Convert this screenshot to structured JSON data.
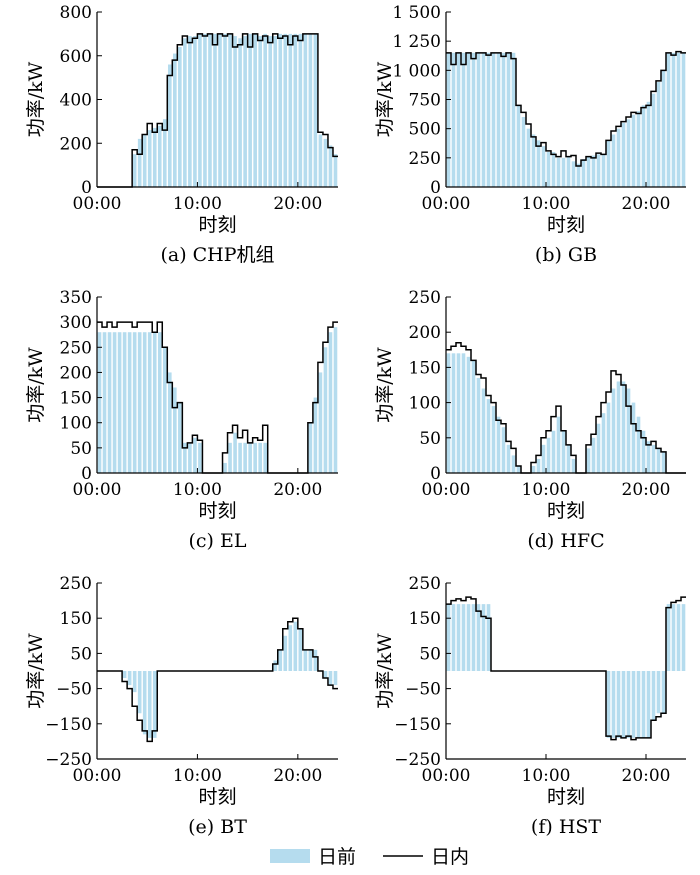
{
  "legend": {
    "day_ahead": "日前",
    "intraday": "日内"
  },
  "colors": {
    "bar": "#b5dcee",
    "line": "#000000"
  },
  "chart_data": [
    {
      "type": "bar",
      "id": "chp",
      "caption": "(a)  CHP机组",
      "xlabel": "时刻",
      "ylabel": "功率/kW",
      "xticks": [
        "00:00",
        "10:00",
        "20:00"
      ],
      "xtick_hours": [
        0,
        10,
        20
      ],
      "ylim": [
        0,
        800
      ],
      "yticks": [
        0,
        200,
        400,
        600,
        800
      ],
      "ytick_labels": [
        "0",
        "200",
        "400",
        "600",
        "800"
      ],
      "x_hours": [
        0,
        0.5,
        1,
        1.5,
        2,
        2.5,
        3,
        3.5,
        4,
        4.5,
        5,
        5.5,
        6,
        6.5,
        7,
        7.5,
        8,
        8.5,
        9,
        9.5,
        10,
        10.5,
        11,
        11.5,
        12,
        12.5,
        13,
        13.5,
        14,
        14.5,
        15,
        15.5,
        16,
        16.5,
        17,
        17.5,
        18,
        18.5,
        19,
        19.5,
        20,
        20.5,
        21,
        21.5,
        22,
        22.5,
        23,
        23.5
      ],
      "day_ahead": [
        0,
        0,
        0,
        0,
        0,
        0,
        0,
        150,
        220,
        240,
        260,
        270,
        280,
        310,
        560,
        610,
        640,
        680,
        690,
        690,
        700,
        700,
        700,
        700,
        700,
        700,
        700,
        690,
        680,
        690,
        700,
        700,
        690,
        700,
        690,
        690,
        700,
        700,
        700,
        700,
        700,
        700,
        700,
        700,
        240,
        220,
        190,
        150
      ],
      "intraday": [
        0,
        0,
        0,
        0,
        0,
        0,
        0,
        170,
        150,
        240,
        290,
        250,
        290,
        260,
        510,
        580,
        650,
        690,
        660,
        680,
        700,
        690,
        700,
        650,
        700,
        690,
        700,
        640,
        650,
        700,
        640,
        700,
        670,
        690,
        660,
        700,
        680,
        690,
        650,
        690,
        670,
        700,
        700,
        700,
        250,
        240,
        180,
        140
      ]
    },
    {
      "type": "bar",
      "id": "gb",
      "caption": "(b)  GB",
      "xlabel": "时刻",
      "ylabel": "功率/kW",
      "xticks": [
        "00:00",
        "10:00",
        "20:00"
      ],
      "xtick_hours": [
        0,
        10,
        20
      ],
      "ylim": [
        0,
        1500
      ],
      "yticks": [
        0,
        250,
        500,
        750,
        1000,
        1250,
        1500
      ],
      "ytick_labels": [
        "0",
        "250",
        "500",
        "750",
        "1 000",
        "1 250",
        "1 500"
      ],
      "x_hours": [
        0,
        0.5,
        1,
        1.5,
        2,
        2.5,
        3,
        3.5,
        4,
        4.5,
        5,
        5.5,
        6,
        6.5,
        7,
        7.5,
        8,
        8.5,
        9,
        9.5,
        10,
        10.5,
        11,
        11.5,
        12,
        12.5,
        13,
        13.5,
        14,
        14.5,
        15,
        15.5,
        16,
        16.5,
        17,
        17.5,
        18,
        18.5,
        19,
        19.5,
        20,
        20.5,
        21,
        21.5,
        22,
        22.5,
        23,
        23.5
      ],
      "day_ahead": [
        1150,
        1150,
        1150,
        1150,
        1150,
        1150,
        1150,
        1150,
        1150,
        1150,
        1150,
        1150,
        1150,
        1150,
        700,
        600,
        500,
        450,
        400,
        350,
        300,
        300,
        250,
        250,
        260,
        220,
        200,
        240,
        260,
        270,
        280,
        280,
        400,
        450,
        500,
        550,
        580,
        620,
        650,
        700,
        730,
        800,
        900,
        1000,
        1150,
        1150,
        1150,
        1150
      ],
      "intraday": [
        1150,
        1050,
        1150,
        1050,
        1150,
        1100,
        1150,
        1150,
        1130,
        1150,
        1150,
        1120,
        1150,
        1100,
        700,
        640,
        540,
        430,
        350,
        380,
        310,
        280,
        260,
        310,
        260,
        270,
        180,
        230,
        260,
        250,
        290,
        280,
        400,
        480,
        520,
        560,
        600,
        640,
        630,
        680,
        700,
        820,
        910,
        1000,
        1150,
        1130,
        1160,
        1150
      ]
    },
    {
      "type": "bar",
      "id": "el",
      "caption": "(c)  EL",
      "xlabel": "时刻",
      "ylabel": "功率/kW",
      "xticks": [
        "00:00",
        "10:00",
        "20:00"
      ],
      "xtick_hours": [
        0,
        10,
        20
      ],
      "ylim": [
        0,
        350
      ],
      "yticks": [
        0,
        50,
        100,
        150,
        200,
        250,
        300,
        350
      ],
      "ytick_labels": [
        "0",
        "50",
        "100",
        "150",
        "200",
        "250",
        "300",
        "350"
      ],
      "x_hours": [
        0,
        0.5,
        1,
        1.5,
        2,
        2.5,
        3,
        3.5,
        4,
        4.5,
        5,
        5.5,
        6,
        6.5,
        7,
        7.5,
        8,
        8.5,
        9,
        9.5,
        10,
        10.5,
        11,
        11.5,
        12,
        12.5,
        13,
        13.5,
        14,
        14.5,
        15,
        15.5,
        16,
        16.5,
        17,
        17.5,
        18,
        18.5,
        19,
        19.5,
        20,
        20.5,
        21,
        21.5,
        22,
        22.5,
        23,
        23.5
      ],
      "day_ahead": [
        280,
        280,
        280,
        280,
        280,
        280,
        280,
        280,
        280,
        280,
        280,
        280,
        280,
        250,
        200,
        170,
        140,
        60,
        60,
        70,
        60,
        0,
        0,
        0,
        0,
        20,
        60,
        80,
        60,
        60,
        60,
        60,
        60,
        60,
        0,
        0,
        0,
        0,
        0,
        0,
        0,
        0,
        100,
        150,
        200,
        250,
        280,
        290
      ],
      "intraday": [
        300,
        290,
        300,
        290,
        300,
        300,
        300,
        290,
        300,
        300,
        300,
        280,
        300,
        250,
        180,
        130,
        140,
        50,
        60,
        75,
        65,
        0,
        0,
        0,
        0,
        40,
        80,
        95,
        70,
        85,
        60,
        70,
        65,
        95,
        0,
        0,
        0,
        0,
        0,
        0,
        0,
        0,
        100,
        140,
        220,
        260,
        290,
        300
      ]
    },
    {
      "type": "bar",
      "id": "hfc",
      "caption": "(d)  HFC",
      "xlabel": "时刻",
      "ylabel": "功率/kW",
      "xticks": [
        "00:00",
        "10:00",
        "20:00"
      ],
      "xtick_hours": [
        0,
        10,
        20
      ],
      "ylim": [
        0,
        250
      ],
      "yticks": [
        0,
        50,
        100,
        150,
        200,
        250
      ],
      "ytick_labels": [
        "0",
        "50",
        "100",
        "150",
        "200",
        "250"
      ],
      "x_hours": [
        0,
        0.5,
        1,
        1.5,
        2,
        2.5,
        3,
        3.5,
        4,
        4.5,
        5,
        5.5,
        6,
        6.5,
        7,
        7.5,
        8,
        8.5,
        9,
        9.5,
        10,
        10.5,
        11,
        11.5,
        12,
        12.5,
        13,
        13.5,
        14,
        14.5,
        15,
        15.5,
        16,
        16.5,
        17,
        17.5,
        18,
        18.5,
        19,
        19.5,
        20,
        20.5,
        21,
        21.5,
        22,
        22.5,
        23,
        23.5
      ],
      "day_ahead": [
        170,
        170,
        170,
        170,
        165,
        160,
        135,
        120,
        105,
        95,
        80,
        65,
        40,
        25,
        10,
        0,
        0,
        10,
        20,
        40,
        50,
        60,
        80,
        60,
        40,
        20,
        0,
        0,
        35,
        50,
        70,
        85,
        100,
        120,
        130,
        130,
        120,
        100,
        80,
        60,
        45,
        40,
        35,
        30,
        0,
        0,
        0,
        0
      ],
      "intraday": [
        175,
        180,
        185,
        180,
        175,
        160,
        140,
        135,
        110,
        100,
        75,
        70,
        45,
        35,
        10,
        0,
        0,
        15,
        25,
        50,
        60,
        80,
        95,
        60,
        40,
        25,
        0,
        0,
        40,
        55,
        80,
        100,
        115,
        145,
        140,
        125,
        95,
        70,
        60,
        50,
        40,
        45,
        35,
        30,
        0,
        0,
        0,
        0
      ]
    },
    {
      "type": "bar",
      "id": "bt",
      "caption": "(e)  BT",
      "xlabel": "时刻",
      "ylabel": "功率/kW",
      "xticks": [
        "00:00",
        "10:00",
        "20:00"
      ],
      "xtick_hours": [
        0,
        10,
        20
      ],
      "ylim": [
        -250,
        250
      ],
      "yticks": [
        -250,
        -150,
        -50,
        50,
        150,
        250
      ],
      "ytick_labels": [
        "−250",
        "−150",
        "−50",
        "50",
        "150",
        "250"
      ],
      "x_hours": [
        0,
        0.5,
        1,
        1.5,
        2,
        2.5,
        3,
        3.5,
        4,
        4.5,
        5,
        5.5,
        6,
        6.5,
        7,
        7.5,
        8,
        8.5,
        9,
        9.5,
        10,
        10.5,
        11,
        11.5,
        12,
        12.5,
        13,
        13.5,
        14,
        14.5,
        15,
        15.5,
        16,
        16.5,
        17,
        17.5,
        18,
        18.5,
        19,
        19.5,
        20,
        20.5,
        21,
        21.5,
        22,
        22.5,
        23,
        23.5
      ],
      "day_ahead": [
        0,
        0,
        0,
        0,
        0,
        -20,
        -40,
        -60,
        -120,
        -180,
        -190,
        -190,
        0,
        0,
        0,
        0,
        0,
        0,
        0,
        0,
        0,
        0,
        0,
        0,
        0,
        0,
        0,
        0,
        0,
        0,
        0,
        0,
        0,
        0,
        0,
        30,
        60,
        100,
        130,
        140,
        120,
        60,
        60,
        60,
        0,
        -20,
        -40,
        -40
      ],
      "intraday": [
        0,
        0,
        0,
        0,
        0,
        -30,
        -50,
        -100,
        -140,
        -170,
        -200,
        -170,
        0,
        0,
        0,
        0,
        0,
        0,
        0,
        0,
        0,
        0,
        0,
        0,
        0,
        0,
        0,
        0,
        0,
        0,
        0,
        0,
        0,
        0,
        0,
        20,
        60,
        120,
        140,
        150,
        120,
        60,
        60,
        40,
        0,
        -20,
        -40,
        -50
      ]
    },
    {
      "type": "bar",
      "id": "hst",
      "caption": "(f)  HST",
      "xlabel": "时刻",
      "ylabel": "功率/kW",
      "xticks": [
        "00:00",
        "10:00",
        "20:00"
      ],
      "xtick_hours": [
        0,
        10,
        20
      ],
      "ylim": [
        -250,
        250
      ],
      "yticks": [
        -250,
        -150,
        -50,
        50,
        150,
        250
      ],
      "ytick_labels": [
        "−250",
        "−150",
        "−50",
        "50",
        "150",
        "250"
      ],
      "x_hours": [
        0,
        0.5,
        1,
        1.5,
        2,
        2.5,
        3,
        3.5,
        4,
        4.5,
        5,
        5.5,
        6,
        6.5,
        7,
        7.5,
        8,
        8.5,
        9,
        9.5,
        10,
        10.5,
        11,
        11.5,
        12,
        12.5,
        13,
        13.5,
        14,
        14.5,
        15,
        15.5,
        16,
        16.5,
        17,
        17.5,
        18,
        18.5,
        19,
        19.5,
        20,
        20.5,
        21,
        21.5,
        22,
        22.5,
        23,
        23.5
      ],
      "day_ahead": [
        190,
        190,
        190,
        190,
        190,
        190,
        190,
        190,
        190,
        0,
        0,
        0,
        0,
        0,
        0,
        0,
        0,
        0,
        0,
        0,
        0,
        0,
        0,
        0,
        0,
        0,
        0,
        0,
        0,
        0,
        0,
        0,
        -190,
        -190,
        -190,
        -190,
        -190,
        -190,
        -190,
        -190,
        -190,
        -140,
        -120,
        -120,
        190,
        190,
        190,
        190
      ],
      "intraday": [
        190,
        200,
        205,
        200,
        210,
        205,
        170,
        155,
        150,
        0,
        0,
        0,
        0,
        0,
        0,
        0,
        0,
        0,
        0,
        0,
        0,
        0,
        0,
        0,
        0,
        0,
        0,
        0,
        0,
        0,
        0,
        0,
        -185,
        -195,
        -185,
        -190,
        -185,
        -195,
        -190,
        -190,
        -190,
        -140,
        -130,
        -120,
        180,
        195,
        200,
        210
      ]
    }
  ]
}
